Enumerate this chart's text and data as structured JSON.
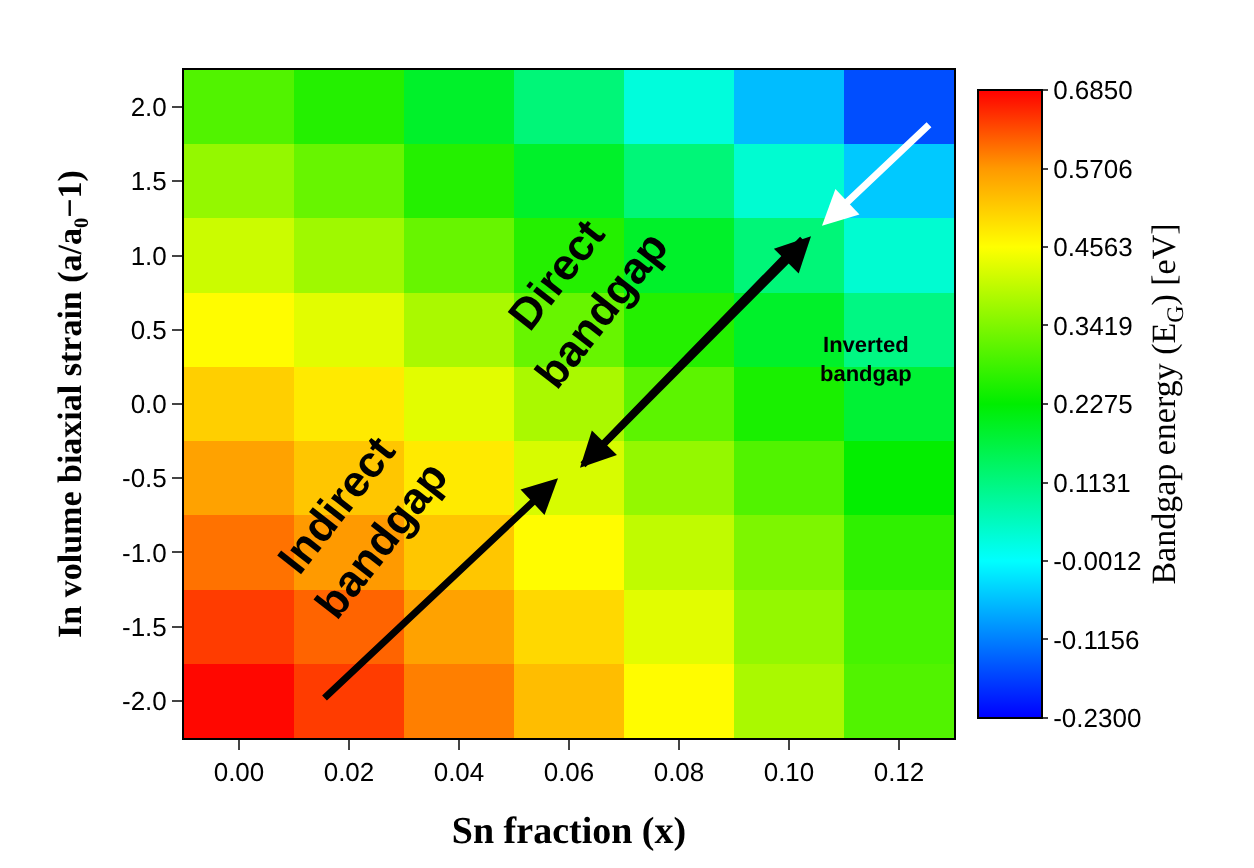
{
  "chart_data": {
    "type": "heatmap",
    "xlabel": "Sn fraction (x)",
    "ylabel": "In volume biaxial strain (a/a₀−1)",
    "clabel": "Bandgap energy (E$_{G}$) [eV]",
    "categories": [
      "0.00",
      "0.02",
      "0.04",
      "0.06",
      "0.08",
      "0.10",
      "0.12"
    ],
    "y_categories": [
      "2.0",
      "1.5",
      "1.0",
      "0.5",
      "0.0",
      "-0.5",
      "-1.0",
      "-1.5",
      "-2.0"
    ],
    "cells": [
      [
        0.3,
        0.26,
        0.19,
        0.12,
        0.03,
        -0.06,
        -0.16
      ],
      [
        0.36,
        0.32,
        0.26,
        0.19,
        0.12,
        0.04,
        -0.05
      ],
      [
        0.41,
        0.37,
        0.32,
        0.26,
        0.19,
        0.12,
        0.04
      ],
      [
        0.46,
        0.43,
        0.38,
        0.32,
        0.26,
        0.19,
        0.11
      ],
      [
        0.51,
        0.48,
        0.43,
        0.38,
        0.31,
        0.25,
        0.18
      ],
      [
        0.56,
        0.52,
        0.48,
        0.42,
        0.36,
        0.3,
        0.23
      ],
      [
        0.6,
        0.57,
        0.52,
        0.46,
        0.4,
        0.34,
        0.27
      ],
      [
        0.64,
        0.61,
        0.56,
        0.5,
        0.43,
        0.36,
        0.29
      ],
      [
        0.68,
        0.64,
        0.59,
        0.53,
        0.46,
        0.38,
        0.3
      ]
    ],
    "clim": [
      -0.23,
      0.685
    ],
    "cticks": [
      {
        "value": 0.685,
        "label": "0.6850"
      },
      {
        "value": 0.5706,
        "label": "0.5706"
      },
      {
        "value": 0.4563,
        "label": "0.4563"
      },
      {
        "value": 0.3419,
        "label": "0.3419"
      },
      {
        "value": 0.2275,
        "label": "0.2275"
      },
      {
        "value": 0.1131,
        "label": "0.1131"
      },
      {
        "value": -0.0012,
        "label": "-0.0012"
      },
      {
        "value": -0.1156,
        "label": "-0.1156"
      },
      {
        "value": -0.23,
        "label": "-0.2300"
      }
    ],
    "annotations": [
      "Indirect\nbandgap",
      "Direct\nbandgap",
      "Inverted\nbandgap"
    ]
  }
}
